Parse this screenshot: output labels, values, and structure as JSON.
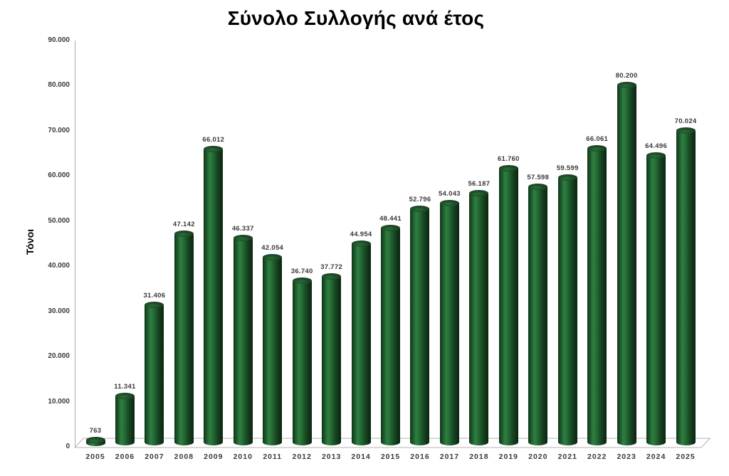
{
  "chart_data": {
    "type": "bar",
    "title": "Σύνολο Συλλογής ανά έτος",
    "ylabel": "Τόνοι",
    "xlabel": "",
    "categories": [
      "2005",
      "2006",
      "2007",
      "2008",
      "2009",
      "2010",
      "2011",
      "2012",
      "2013",
      "2014",
      "2015",
      "2016",
      "2017",
      "2018",
      "2019",
      "2020",
      "2021",
      "2022",
      "2023",
      "2024",
      "2025"
    ],
    "values": [
      763,
      11341,
      31406,
      47142,
      66012,
      46337,
      42054,
      36740,
      37772,
      44954,
      48441,
      52796,
      54043,
      56187,
      61760,
      57598,
      59599,
      66061,
      80200,
      64496,
      70024
    ],
    "value_labels": [
      "763",
      "11.341",
      "31.406",
      "47.142",
      "66.012",
      "46.337",
      "42.054",
      "36.740",
      "37.772",
      "44.954",
      "48.441",
      "52.796",
      "54.043",
      "56.187",
      "61.760",
      "57.598",
      "59.599",
      "66.061",
      "80.200",
      "64.496",
      "70.024"
    ],
    "y_ticks": [
      "0",
      "10.000",
      "20.000",
      "30.000",
      "40.000",
      "50.000",
      "60.000",
      "70.000",
      "80.000",
      "90.000"
    ],
    "ylim": [
      0,
      90000
    ],
    "grid": false,
    "legend": false,
    "style": "3d-cylinder-bars",
    "colors": {
      "bar_main": "#2d8041",
      "bar_dark": "#0f3317",
      "bar_top": "#1c4524",
      "axis_line": "#a9a9a9",
      "floor_line": "#b3b3b3",
      "label_text": "#3a3a3a",
      "title_text": "#000000",
      "background": "#ffffff"
    }
  }
}
